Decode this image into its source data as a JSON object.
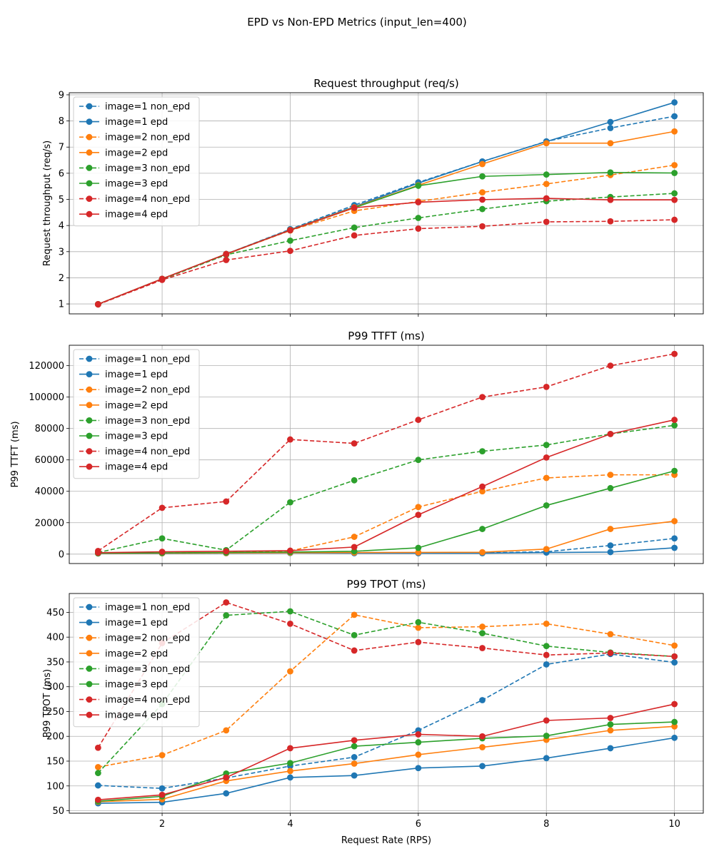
{
  "figure": {
    "suptitle": "EPD vs Non-EPD Metrics (input_len=400)",
    "xlabel": "Request Rate (RPS)"
  },
  "chart_data": [
    {
      "type": "line",
      "title": "Request throughput (req/s)",
      "xlabel": "",
      "ylabel": "Request throughput (req/s)",
      "x": [
        1,
        2,
        3,
        4,
        5,
        6,
        7,
        8,
        9,
        10
      ],
      "xlim": [
        0.55,
        10.45
      ],
      "ylim": [
        0.62,
        9.08
      ],
      "xticks": [
        2,
        4,
        6,
        8,
        10
      ],
      "yticks": [
        1,
        2,
        3,
        4,
        5,
        6,
        7,
        8,
        9
      ],
      "grid": true,
      "legend": "upper left",
      "series": [
        {
          "name": "image=1 non_epd",
          "color": "#1f77b4",
          "dash": true,
          "values": [
            0.99,
            1.95,
            2.91,
            3.86,
            4.78,
            5.65,
            6.45,
            7.22,
            7.73,
            8.18
          ]
        },
        {
          "name": "image=1 epd",
          "color": "#1f77b4",
          "dash": false,
          "values": [
            0.99,
            1.96,
            2.91,
            3.84,
            4.72,
            5.62,
            6.45,
            7.21,
            7.96,
            8.71
          ]
        },
        {
          "name": "image=2 non_epd",
          "color": "#ff7f0e",
          "dash": true,
          "values": [
            0.99,
            1.95,
            2.9,
            3.81,
            4.56,
            4.92,
            5.27,
            5.59,
            5.93,
            6.31
          ]
        },
        {
          "name": "image=2 epd",
          "color": "#ff7f0e",
          "dash": false,
          "values": [
            0.99,
            1.96,
            2.91,
            3.83,
            4.7,
            5.54,
            6.35,
            7.15,
            7.15,
            7.6
          ]
        },
        {
          "name": "image=3 non_epd",
          "color": "#2ca02c",
          "dash": true,
          "values": [
            0.98,
            1.94,
            2.88,
            3.42,
            3.92,
            4.29,
            4.63,
            4.93,
            5.09,
            5.23
          ]
        },
        {
          "name": "image=3 epd",
          "color": "#2ca02c",
          "dash": false,
          "values": [
            0.99,
            1.96,
            2.91,
            3.82,
            4.68,
            5.52,
            5.88,
            5.95,
            6.03,
            6.01
          ]
        },
        {
          "name": "image=4 non_epd",
          "color": "#d62728",
          "dash": true,
          "values": [
            0.98,
            1.92,
            2.68,
            3.03,
            3.62,
            3.88,
            3.97,
            4.14,
            4.16,
            4.22
          ]
        },
        {
          "name": "image=4 epd",
          "color": "#d62728",
          "dash": false,
          "values": [
            0.99,
            1.96,
            2.91,
            3.82,
            4.68,
            4.89,
            4.99,
            5.04,
            4.98,
            4.98
          ]
        }
      ]
    },
    {
      "type": "line",
      "title": "P99 TTFT (ms)",
      "xlabel": "",
      "ylabel": "P99 TTFT (ms)",
      "x": [
        1,
        2,
        3,
        4,
        5,
        6,
        7,
        8,
        9,
        10
      ],
      "xlim": [
        0.55,
        10.45
      ],
      "ylim": [
        -6000,
        133000
      ],
      "xticks": [
        2,
        4,
        6,
        8,
        10
      ],
      "yticks": [
        0,
        20000,
        40000,
        60000,
        80000,
        100000,
        120000
      ],
      "grid": true,
      "legend": "upper left",
      "series": [
        {
          "name": "image=1 non_epd",
          "color": "#1f77b4",
          "dash": true,
          "values": [
            500,
            600,
            700,
            900,
            800,
            700,
            800,
            1500,
            5500,
            10000
          ]
        },
        {
          "name": "image=1 epd",
          "color": "#1f77b4",
          "dash": false,
          "values": [
            400,
            500,
            600,
            700,
            600,
            600,
            600,
            1000,
            1300,
            4000
          ]
        },
        {
          "name": "image=2 non_epd",
          "color": "#ff7f0e",
          "dash": true,
          "values": [
            600,
            800,
            900,
            2000,
            11000,
            30000,
            40000,
            48500,
            50500,
            50500
          ]
        },
        {
          "name": "image=2 epd",
          "color": "#ff7f0e",
          "dash": false,
          "values": [
            500,
            600,
            700,
            900,
            1000,
            1100,
            1200,
            3200,
            16000,
            21000
          ]
        },
        {
          "name": "image=3 non_epd",
          "color": "#2ca02c",
          "dash": true,
          "values": [
            1000,
            10000,
            2500,
            33000,
            47000,
            60000,
            65500,
            69500,
            76500,
            82000
          ]
        },
        {
          "name": "image=3 epd",
          "color": "#2ca02c",
          "dash": false,
          "values": [
            600,
            800,
            1000,
            1300,
            1800,
            4000,
            16000,
            31000,
            42000,
            53000
          ]
        },
        {
          "name": "image=4 non_epd",
          "color": "#d62728",
          "dash": true,
          "values": [
            2000,
            29500,
            33500,
            73000,
            70500,
            85500,
            100000,
            106500,
            120000,
            127500
          ]
        },
        {
          "name": "image=4 epd",
          "color": "#d62728",
          "dash": false,
          "values": [
            900,
            1500,
            1800,
            2200,
            4500,
            25000,
            43000,
            61500,
            76500,
            85500
          ]
        }
      ]
    },
    {
      "type": "line",
      "title": "P99 TPOT (ms)",
      "xlabel": "Request Rate (RPS)",
      "ylabel": "P99 TPOT (ms)",
      "x": [
        1,
        2,
        3,
        4,
        5,
        6,
        7,
        8,
        9,
        10
      ],
      "xlim": [
        0.55,
        10.45
      ],
      "ylim": [
        45,
        488
      ],
      "xticks": [
        2,
        4,
        6,
        8,
        10
      ],
      "yticks": [
        50,
        100,
        150,
        200,
        250,
        300,
        350,
        400,
        450
      ],
      "grid": true,
      "legend": "upper left",
      "series": [
        {
          "name": "image=1 non_epd",
          "color": "#1f77b4",
          "dash": true,
          "values": [
            101,
            95,
            116,
            140,
            158,
            212,
            273,
            345,
            366,
            349
          ]
        },
        {
          "name": "image=1 epd",
          "color": "#1f77b4",
          "dash": false,
          "values": [
            65,
            67,
            85,
            117,
            121,
            136,
            140,
            156,
            176,
            197
          ]
        },
        {
          "name": "image=2 non_epd",
          "color": "#ff7f0e",
          "dash": true,
          "values": [
            138,
            162,
            212,
            331,
            445,
            419,
            421,
            427,
            406,
            383
          ]
        },
        {
          "name": "image=2 epd",
          "color": "#ff7f0e",
          "dash": false,
          "values": [
            68,
            73,
            110,
            130,
            145,
            163,
            178,
            193,
            212,
            220
          ]
        },
        {
          "name": "image=3 non_epd",
          "color": "#2ca02c",
          "dash": true,
          "values": [
            126,
            265,
            444,
            452,
            404,
            430,
            408,
            382,
            369,
            361
          ]
        },
        {
          "name": "image=3 epd",
          "color": "#2ca02c",
          "dash": false,
          "values": [
            69,
            79,
            125,
            146,
            180,
            188,
            196,
            201,
            224,
            229
          ]
        },
        {
          "name": "image=4 non_epd",
          "color": "#d62728",
          "dash": true,
          "values": [
            177,
            388,
            470,
            427,
            373,
            390,
            378,
            364,
            368,
            361
          ]
        },
        {
          "name": "image=4 epd",
          "color": "#d62728",
          "dash": false,
          "values": [
            72,
            82,
            117,
            176,
            192,
            204,
            200,
            232,
            237,
            265
          ]
        }
      ]
    }
  ]
}
